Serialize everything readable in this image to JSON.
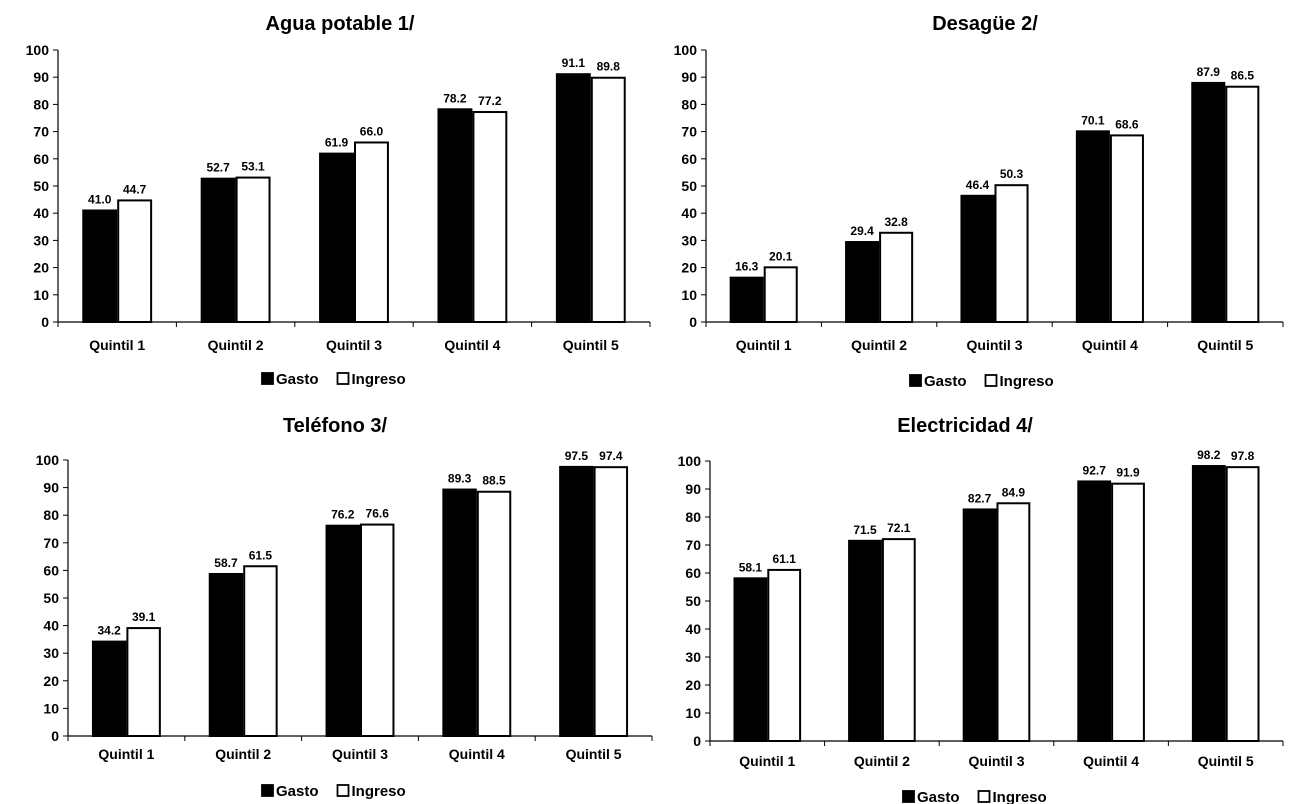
{
  "chart_data": [
    {
      "type": "bar",
      "title": "Agua potable 1/",
      "categories": [
        "Quintil 1",
        "Quintil 2",
        "Quintil 3",
        "Quintil 4",
        "Quintil 5"
      ],
      "series": [
        {
          "name": "Gasto",
          "values": [
            41.0,
            52.7,
            61.9,
            78.2,
            91.1
          ],
          "color": "#000000"
        },
        {
          "name": "Ingreso",
          "values": [
            44.7,
            53.1,
            66.0,
            77.2,
            89.8
          ],
          "color": "#ffffff"
        }
      ],
      "ylim": [
        0,
        100
      ],
      "yticks": [
        0,
        10,
        20,
        30,
        40,
        50,
        60,
        70,
        80,
        90,
        100
      ],
      "grid": false,
      "legend": "bottom"
    },
    {
      "type": "bar",
      "title": "Desagüe 2/",
      "categories": [
        "Quintil 1",
        "Quintil 2",
        "Quintil 3",
        "Quintil 4",
        "Quintil 5"
      ],
      "series": [
        {
          "name": "Gasto",
          "values": [
            16.3,
            29.4,
            46.4,
            70.1,
            87.9
          ],
          "color": "#000000"
        },
        {
          "name": "Ingreso",
          "values": [
            20.1,
            32.8,
            50.3,
            68.6,
            86.5
          ],
          "color": "#ffffff"
        }
      ],
      "ylim": [
        0,
        100
      ],
      "yticks": [
        0,
        10,
        20,
        30,
        40,
        50,
        60,
        70,
        80,
        90,
        100
      ],
      "grid": false,
      "legend": "bottom"
    },
    {
      "type": "bar",
      "title": "Teléfono 3/",
      "categories": [
        "Quintil 1",
        "Quintil 2",
        "Quintil 3",
        "Quintil 4",
        "Quintil 5"
      ],
      "series": [
        {
          "name": "Gasto",
          "values": [
            34.2,
            58.7,
            76.2,
            89.3,
            97.5
          ],
          "color": "#000000"
        },
        {
          "name": "Ingreso",
          "values": [
            39.1,
            61.5,
            76.6,
            88.5,
            97.4
          ],
          "color": "#ffffff"
        }
      ],
      "ylim": [
        0,
        100
      ],
      "yticks": [
        0,
        10,
        20,
        30,
        40,
        50,
        60,
        70,
        80,
        90,
        100
      ],
      "grid": false,
      "legend": "bottom"
    },
    {
      "type": "bar",
      "title": "Electricidad 4/",
      "categories": [
        "Quintil 1",
        "Quintil 2",
        "Quintil 3",
        "Quintil 4",
        "Quintil 5"
      ],
      "series": [
        {
          "name": "Gasto",
          "values": [
            58.1,
            71.5,
            82.7,
            92.7,
            98.2
          ],
          "color": "#000000"
        },
        {
          "name": "Ingreso",
          "values": [
            61.1,
            72.1,
            84.9,
            91.9,
            97.8
          ],
          "color": "#ffffff"
        }
      ],
      "ylim": [
        0,
        100
      ],
      "yticks": [
        0,
        10,
        20,
        30,
        40,
        50,
        60,
        70,
        80,
        90,
        100
      ],
      "grid": false,
      "legend": "bottom"
    }
  ]
}
